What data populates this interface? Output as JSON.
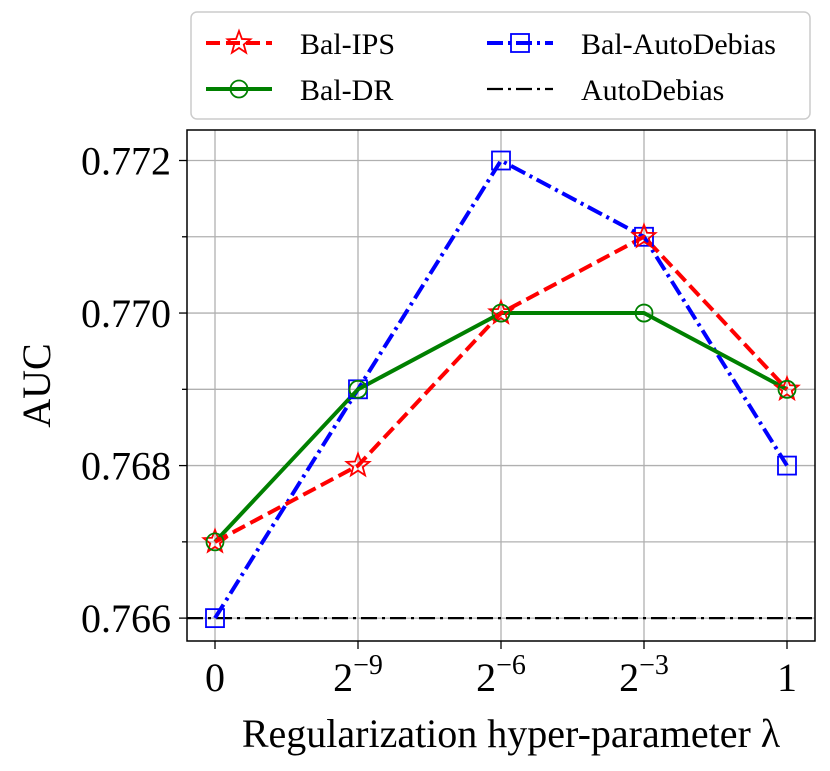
{
  "chart_data": {
    "type": "line",
    "xlabel": "Regularization hyper-parameter λ",
    "ylabel": "AUC",
    "categories": [
      {
        "base": "0",
        "exp": ""
      },
      {
        "base": "2",
        "exp": "−9"
      },
      {
        "base": "2",
        "exp": "−6"
      },
      {
        "base": "2",
        "exp": "−3"
      },
      {
        "base": "1",
        "exp": ""
      }
    ],
    "ylim": [
      0.7657,
      0.7724
    ],
    "yticks": [
      0.766,
      0.768,
      0.77,
      0.772
    ],
    "ytick_labels": [
      "0.766",
      "0.768",
      "0.770",
      "0.772"
    ],
    "grid": true,
    "legend": {
      "placement": "top",
      "columns": 2
    },
    "series": [
      {
        "name": "Bal-IPS",
        "color": "#ff0000",
        "marker": "star",
        "linestyle": "dashed",
        "values": [
          0.767,
          0.768,
          0.77,
          0.771,
          0.769
        ]
      },
      {
        "name": "Bal-DR",
        "color": "#008000",
        "marker": "circle",
        "linestyle": "solid",
        "values": [
          0.767,
          0.769,
          0.77,
          0.77,
          0.769
        ]
      },
      {
        "name": "Bal-AutoDebias",
        "color": "#0000ff",
        "marker": "square",
        "linestyle": "dashdot",
        "values": [
          0.766,
          0.769,
          0.772,
          0.771,
          0.768
        ]
      },
      {
        "name": "AutoDebias",
        "color": "#000000",
        "marker": "none",
        "linestyle": "dashdot",
        "values": [
          0.766,
          0.766,
          0.766,
          0.766,
          0.766
        ]
      }
    ]
  }
}
